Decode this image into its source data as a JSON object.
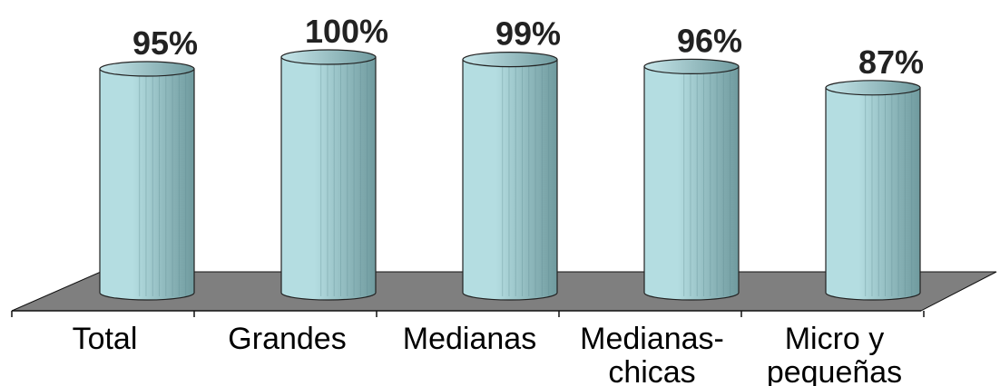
{
  "chart_data": {
    "type": "bar",
    "categories": [
      "Total",
      "Grandes",
      "Medianas",
      "Medianas-chicas",
      "Micro y pequeñas"
    ],
    "category_lines": [
      [
        "Total"
      ],
      [
        "Grandes"
      ],
      [
        "Medianas"
      ],
      [
        "Medianas-",
        "chicas"
      ],
      [
        "Micro y",
        "pequeñas"
      ]
    ],
    "values": [
      95,
      100,
      99,
      96,
      87
    ],
    "value_labels": [
      "95%",
      "100%",
      "99%",
      "96%",
      "87%"
    ],
    "title": "",
    "xlabel": "",
    "ylabel": "",
    "ylim": [
      0,
      100
    ],
    "grid": false,
    "legend": "none",
    "style": "3d-cylinder",
    "colors": {
      "bar_fill": "#b4dde1",
      "bar_shade": "#6f9a9e",
      "bar_edge": "#222222",
      "floor": "#7f7f7f",
      "floor_edge": "#111111"
    }
  }
}
